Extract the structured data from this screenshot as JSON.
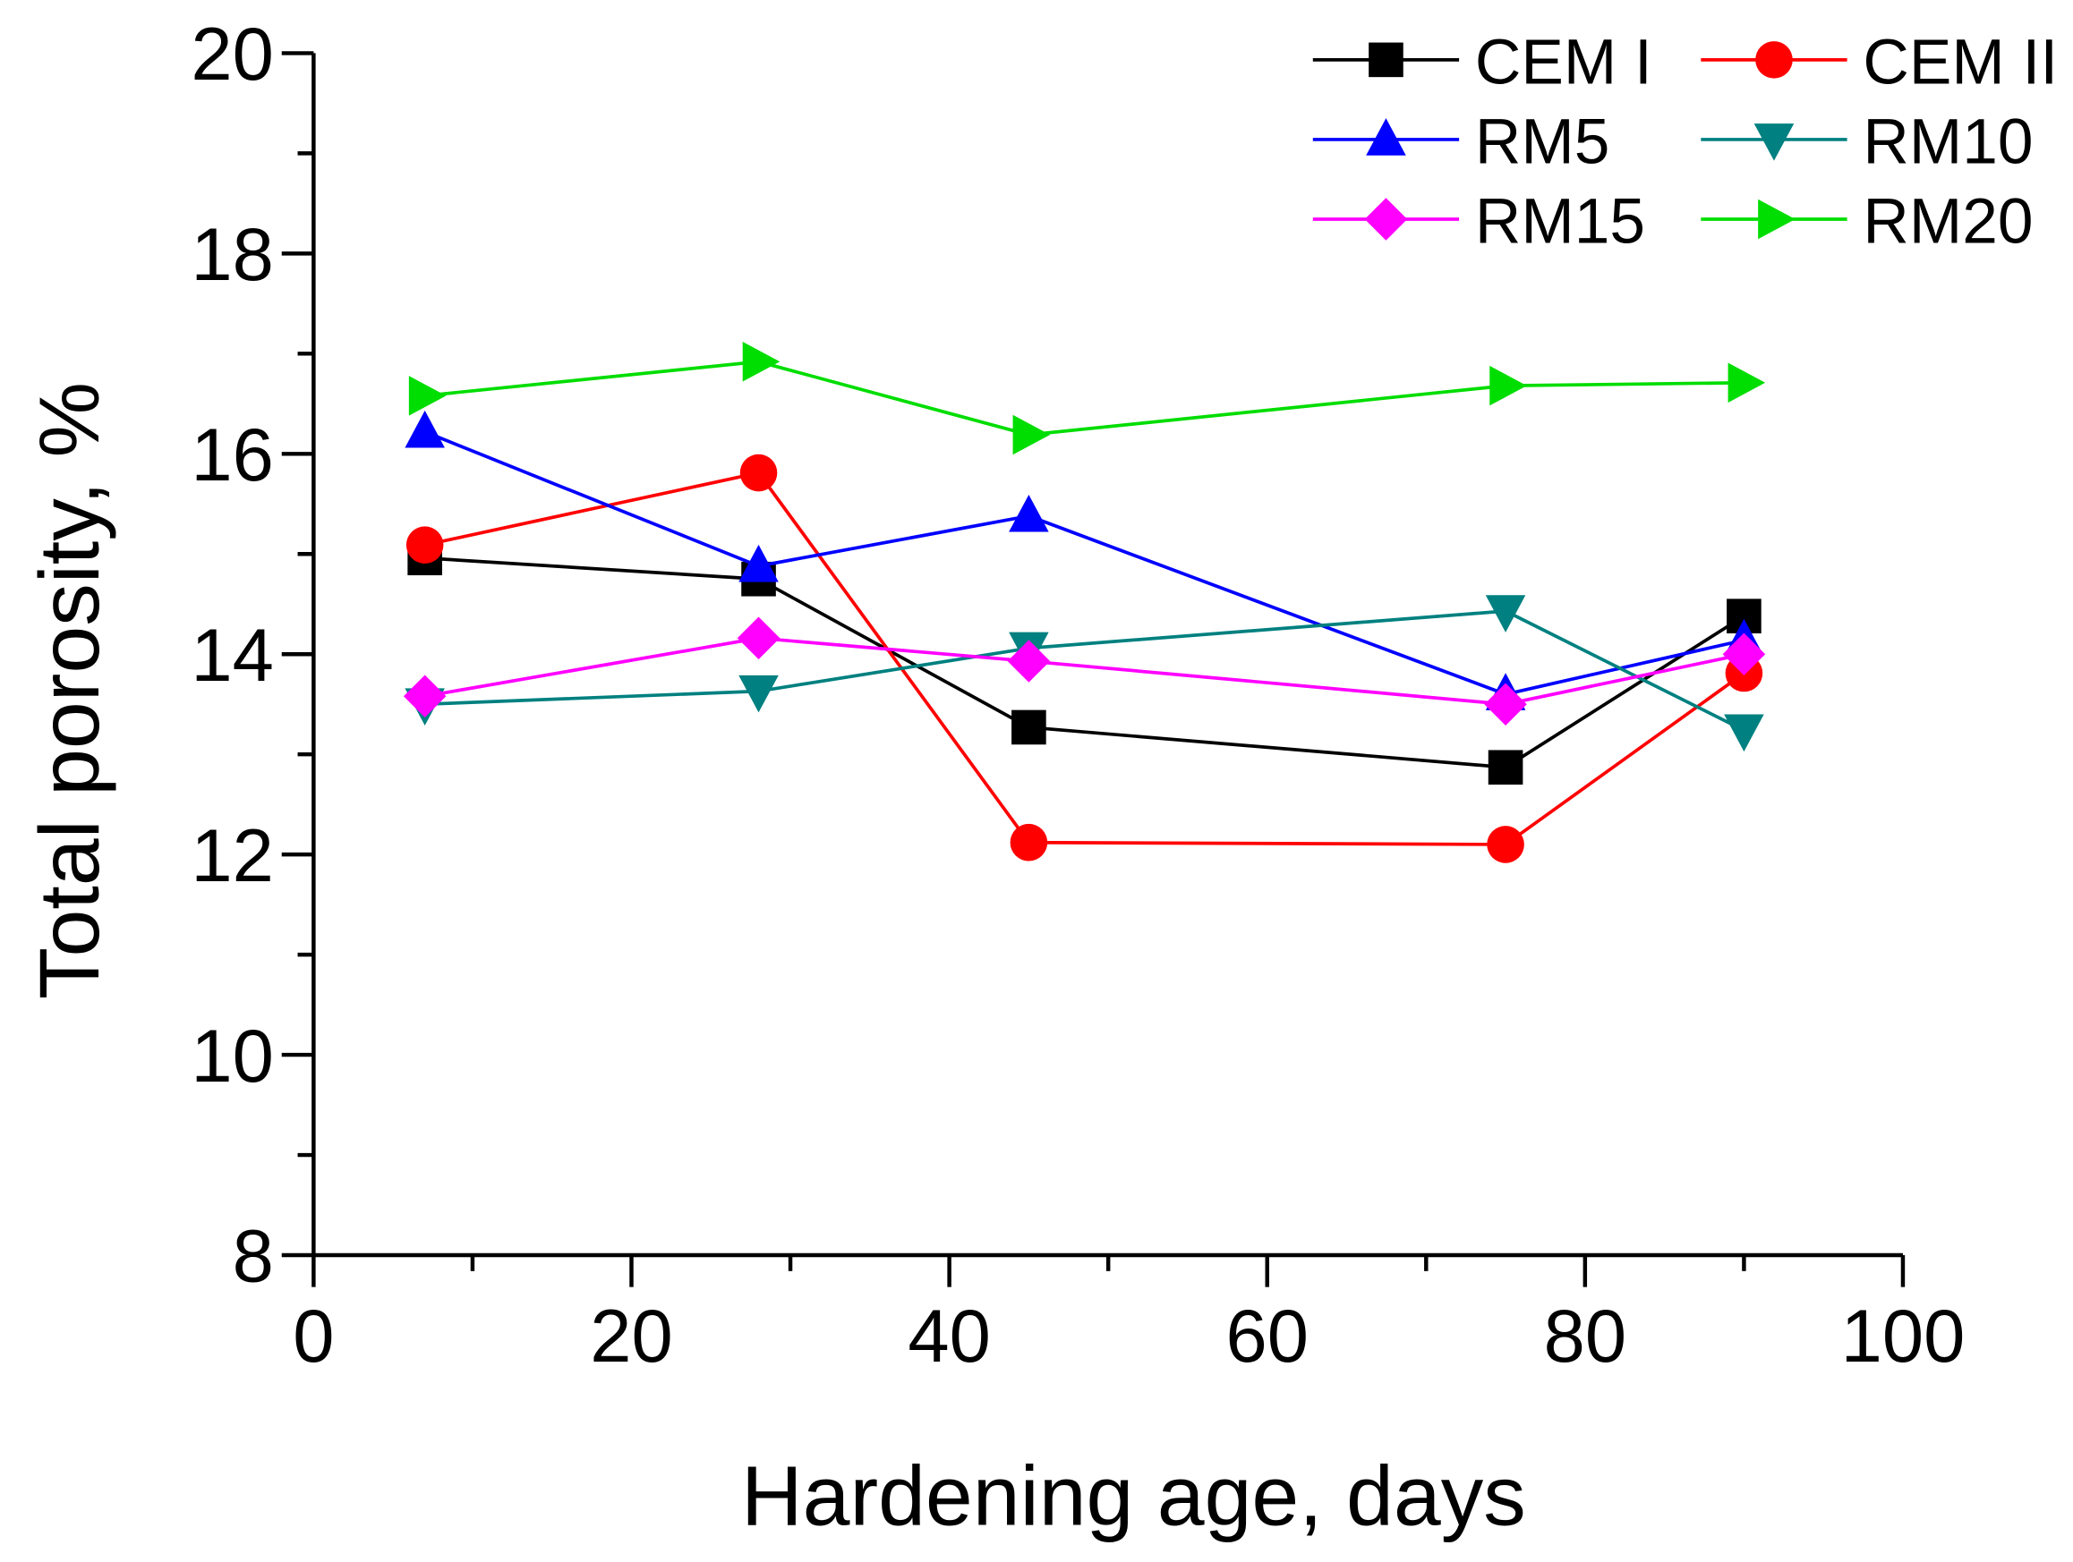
{
  "chart_data": {
    "type": "line",
    "title": "",
    "xlabel": "Hardening age, days",
    "ylabel": "Total porosity, %",
    "xlim": [
      0,
      100
    ],
    "ylim": [
      8,
      20
    ],
    "xticks": [
      0,
      20,
      40,
      60,
      80,
      100
    ],
    "yticks": [
      8,
      10,
      12,
      14,
      16,
      18,
      20
    ],
    "grid": false,
    "legend_position": "top-right",
    "x": [
      7,
      28,
      45,
      75,
      90
    ],
    "series": [
      {
        "name": "CEM I",
        "color": "#000000",
        "marker": "square",
        "values": [
          14.96,
          14.75,
          13.27,
          12.87,
          14.38
        ]
      },
      {
        "name": "CEM II",
        "color": "#ff0000",
        "marker": "circle",
        "values": [
          15.09,
          15.81,
          12.12,
          12.1,
          13.81
        ]
      },
      {
        "name": "RM5",
        "color": "#0000ff",
        "marker": "triangle-up",
        "values": [
          16.22,
          14.88,
          15.38,
          13.6,
          14.14
        ]
      },
      {
        "name": "RM10",
        "color": "#008080",
        "marker": "triangle-down",
        "values": [
          13.5,
          13.63,
          14.06,
          14.43,
          13.24
        ]
      },
      {
        "name": "RM15",
        "color": "#ff00ff",
        "marker": "diamond",
        "values": [
          13.58,
          14.16,
          13.93,
          13.5,
          14.0
        ]
      },
      {
        "name": "RM20",
        "color": "#00dd00",
        "marker": "triangle-right",
        "values": [
          16.58,
          16.92,
          16.19,
          16.68,
          16.71
        ]
      }
    ]
  }
}
